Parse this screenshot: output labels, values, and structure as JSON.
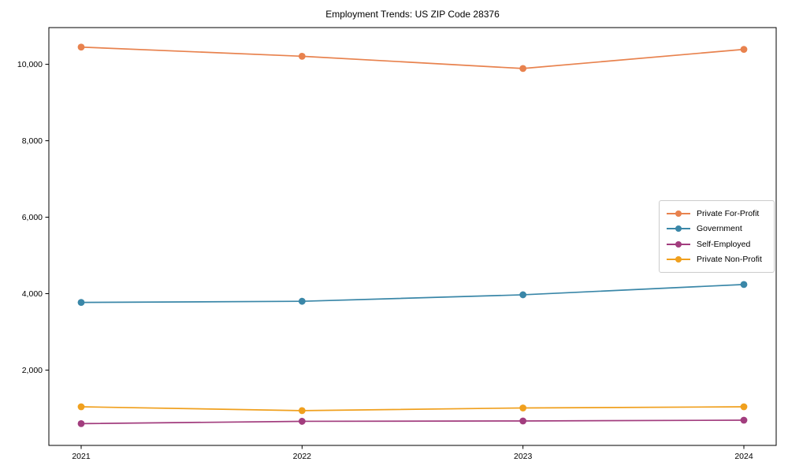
{
  "title": "Employment Trends: US ZIP Code 28376",
  "chart_data": {
    "type": "line",
    "x": [
      "2021",
      "2022",
      "2023",
      "2024"
    ],
    "series": [
      {
        "name": "Private For-Profit",
        "color": "#e8824e",
        "values": [
          10450,
          10210,
          9890,
          10390
        ]
      },
      {
        "name": "Government",
        "color": "#3a87a8",
        "values": [
          3770,
          3800,
          3970,
          4240
        ]
      },
      {
        "name": "Self-Employed",
        "color": "#a23d7e",
        "values": [
          600,
          660,
          670,
          690
        ]
      },
      {
        "name": "Private Non-Profit",
        "color": "#f0a01e",
        "values": [
          1040,
          940,
          1010,
          1040
        ]
      }
    ],
    "yticks": [
      2000,
      4000,
      6000,
      8000,
      10000
    ],
    "ylim": [
      30,
      10960
    ],
    "grid": false,
    "legend_position": "center right",
    "frame": true
  }
}
